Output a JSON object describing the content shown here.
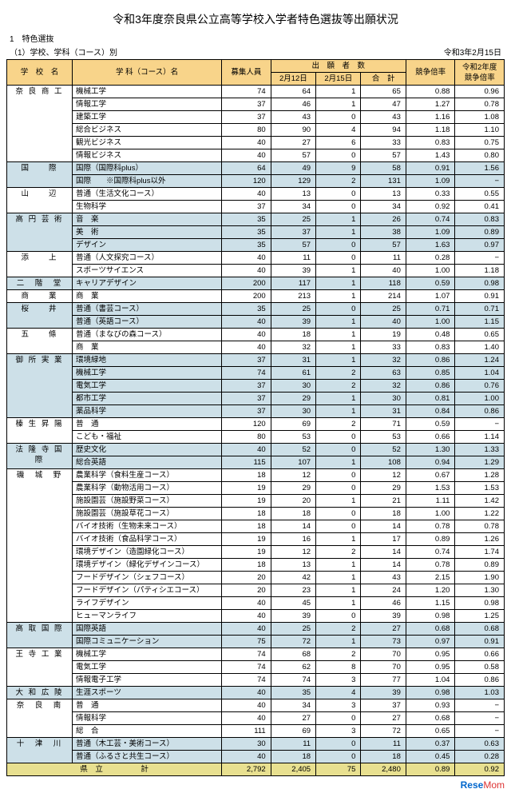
{
  "title": "令和3年度奈良県公立高等学校入学者特色選抜等出願状況",
  "section": "1　特色選抜",
  "subsection": "（1）学校、学科（コース）別",
  "date": "令和3年2月15日",
  "headers": {
    "school": "学　校　名",
    "course": "学 科（コース）名",
    "capacity": "募集人員",
    "appl_group": "出　願　者　数",
    "d1": "2月12日",
    "d2": "2月15日",
    "total": "合　計",
    "ratio": "競争倍率",
    "prev": "令和2年度\n競争倍率"
  },
  "schools": [
    {
      "name": "奈 良 商 工",
      "shade": false,
      "rows": [
        {
          "c": "機械工学",
          "cap": 74,
          "d1": 64,
          "d2": 1,
          "t": 65,
          "r": "0.88",
          "p": "0.96"
        },
        {
          "c": "情報工学",
          "cap": 37,
          "d1": 46,
          "d2": 1,
          "t": 47,
          "r": "1.27",
          "p": "0.78"
        },
        {
          "c": "建築工学",
          "cap": 37,
          "d1": 43,
          "d2": 0,
          "t": 43,
          "r": "1.16",
          "p": "1.08"
        },
        {
          "c": "総合ビジネス",
          "cap": 80,
          "d1": 90,
          "d2": 4,
          "t": 94,
          "r": "1.18",
          "p": "1.10"
        },
        {
          "c": "観光ビジネス",
          "cap": 40,
          "d1": 27,
          "d2": 6,
          "t": 33,
          "r": "0.83",
          "p": "0.75"
        },
        {
          "c": "情報ビジネス",
          "cap": 40,
          "d1": 57,
          "d2": 0,
          "t": 57,
          "r": "1.43",
          "p": "0.80"
        }
      ]
    },
    {
      "name": "国　　際",
      "shade": true,
      "rows": [
        {
          "c": "国際（国際科plus）",
          "cap": 64,
          "d1": 49,
          "d2": 9,
          "t": 58,
          "r": "0.91",
          "p": "1.56"
        },
        {
          "c": "国際　　※国際科plus以外",
          "cap": 120,
          "d1": 129,
          "d2": 2,
          "t": 131,
          "r": "1.09",
          "p": "−"
        }
      ]
    },
    {
      "name": "山　　辺",
      "shade": false,
      "rows": [
        {
          "c": "普通（生活文化コース）",
          "cap": 40,
          "d1": 13,
          "d2": 0,
          "t": 13,
          "r": "0.33",
          "p": "0.55"
        },
        {
          "c": "生物科学",
          "cap": 37,
          "d1": 34,
          "d2": 0,
          "t": 34,
          "r": "0.92",
          "p": "0.41"
        }
      ]
    },
    {
      "name": "高 円 芸 術",
      "shade": true,
      "rows": [
        {
          "c": "音　楽",
          "cap": 35,
          "d1": 25,
          "d2": 1,
          "t": 26,
          "r": "0.74",
          "p": "0.83"
        },
        {
          "c": "美　術",
          "cap": 35,
          "d1": 37,
          "d2": 1,
          "t": 38,
          "r": "1.09",
          "p": "0.89"
        },
        {
          "c": "デザイン",
          "cap": 35,
          "d1": 57,
          "d2": 0,
          "t": 57,
          "r": "1.63",
          "p": "0.97"
        }
      ]
    },
    {
      "name": "添　　上",
      "shade": false,
      "rows": [
        {
          "c": "普通（人文探究コース）",
          "cap": 40,
          "d1": 11,
          "d2": 0,
          "t": 11,
          "r": "0.28",
          "p": "−"
        },
        {
          "c": "スポーツサイエンス",
          "cap": 40,
          "d1": 39,
          "d2": 1,
          "t": 40,
          "r": "1.00",
          "p": "1.18"
        }
      ]
    },
    {
      "name": "二　階　堂",
      "shade": true,
      "rows": [
        {
          "c": "キャリアデザイン",
          "cap": 200,
          "d1": 117,
          "d2": 1,
          "t": 118,
          "r": "0.59",
          "p": "0.98"
        }
      ]
    },
    {
      "name": "商　　業",
      "shade": false,
      "rows": [
        {
          "c": "商　業",
          "cap": 200,
          "d1": 213,
          "d2": 1,
          "t": 214,
          "r": "1.07",
          "p": "0.91"
        }
      ]
    },
    {
      "name": "桜　　井",
      "shade": true,
      "rows": [
        {
          "c": "普通（書芸コース）",
          "cap": 35,
          "d1": 25,
          "d2": 0,
          "t": 25,
          "r": "0.71",
          "p": "0.71"
        },
        {
          "c": "普通（英語コース）",
          "cap": 40,
          "d1": 39,
          "d2": 1,
          "t": 40,
          "r": "1.00",
          "p": "1.15"
        }
      ]
    },
    {
      "name": "五　　條",
      "shade": false,
      "rows": [
        {
          "c": "普通（まなびの森コース）",
          "cap": 40,
          "d1": 18,
          "d2": 1,
          "t": 19,
          "r": "0.48",
          "p": "0.65"
        },
        {
          "c": "商　業",
          "cap": 40,
          "d1": 32,
          "d2": 1,
          "t": 33,
          "r": "0.83",
          "p": "1.40"
        }
      ]
    },
    {
      "name": "御 所 実 業",
      "shade": true,
      "rows": [
        {
          "c": "環境緑地",
          "cap": 37,
          "d1": 31,
          "d2": 1,
          "t": 32,
          "r": "0.86",
          "p": "1.24"
        },
        {
          "c": "機械工学",
          "cap": 74,
          "d1": 61,
          "d2": 2,
          "t": 63,
          "r": "0.85",
          "p": "1.04"
        },
        {
          "c": "電気工学",
          "cap": 37,
          "d1": 30,
          "d2": 2,
          "t": 32,
          "r": "0.86",
          "p": "0.76"
        },
        {
          "c": "都市工学",
          "cap": 37,
          "d1": 29,
          "d2": 1,
          "t": 30,
          "r": "0.81",
          "p": "1.00"
        },
        {
          "c": "薬品科学",
          "cap": 37,
          "d1": 30,
          "d2": 1,
          "t": 31,
          "r": "0.84",
          "p": "0.86"
        }
      ]
    },
    {
      "name": "榛 生 昇 陽",
      "shade": false,
      "rows": [
        {
          "c": "普　通",
          "cap": 120,
          "d1": 69,
          "d2": 2,
          "t": 71,
          "r": "0.59",
          "p": "−"
        },
        {
          "c": "こども・福祉",
          "cap": 80,
          "d1": 53,
          "d2": 0,
          "t": 53,
          "r": "0.66",
          "p": "1.14"
        }
      ]
    },
    {
      "name": "法 隆 寺 国 際",
      "shade": true,
      "rows": [
        {
          "c": "歴史文化",
          "cap": 40,
          "d1": 52,
          "d2": 0,
          "t": 52,
          "r": "1.30",
          "p": "1.33"
        },
        {
          "c": "総合英語",
          "cap": 115,
          "d1": 107,
          "d2": 1,
          "t": 108,
          "r": "0.94",
          "p": "1.29"
        }
      ]
    },
    {
      "name": "磯　城　野",
      "shade": false,
      "rows": [
        {
          "c": "農業科学（食料生産コース）",
          "cap": 18,
          "d1": 12,
          "d2": 0,
          "t": 12,
          "r": "0.67",
          "p": "1.28"
        },
        {
          "c": "農業科学（動物活用コース）",
          "cap": 19,
          "d1": 29,
          "d2": 0,
          "t": 29,
          "r": "1.53",
          "p": "1.53"
        },
        {
          "c": "施設園芸（施設野菜コース）",
          "cap": 19,
          "d1": 20,
          "d2": 1,
          "t": 21,
          "r": "1.11",
          "p": "1.42"
        },
        {
          "c": "施設園芸（施設草花コース）",
          "cap": 18,
          "d1": 18,
          "d2": 0,
          "t": 18,
          "r": "1.00",
          "p": "1.22"
        },
        {
          "c": "バイオ技術（生物未来コース）",
          "cap": 18,
          "d1": 14,
          "d2": 0,
          "t": 14,
          "r": "0.78",
          "p": "0.78"
        },
        {
          "c": "バイオ技術（食品科学コース）",
          "cap": 19,
          "d1": 16,
          "d2": 1,
          "t": 17,
          "r": "0.89",
          "p": "1.26"
        },
        {
          "c": "環境デザイン（造園緑化コース）",
          "cap": 19,
          "d1": 12,
          "d2": 2,
          "t": 14,
          "r": "0.74",
          "p": "1.74"
        },
        {
          "c": "環境デザイン（緑化デザインコース）",
          "cap": 18,
          "d1": 13,
          "d2": 1,
          "t": 14,
          "r": "0.78",
          "p": "0.89"
        },
        {
          "c": "フードデザイン（シェフコース）",
          "cap": 20,
          "d1": 42,
          "d2": 1,
          "t": 43,
          "r": "2.15",
          "p": "1.90"
        },
        {
          "c": "フードデザイン（パティシエコース）",
          "cap": 20,
          "d1": 23,
          "d2": 1,
          "t": 24,
          "r": "1.20",
          "p": "1.30"
        },
        {
          "c": "ライフデザイン",
          "cap": 40,
          "d1": 45,
          "d2": 1,
          "t": 46,
          "r": "1.15",
          "p": "0.98"
        },
        {
          "c": "ヒューマンライフ",
          "cap": 40,
          "d1": 39,
          "d2": 0,
          "t": 39,
          "r": "0.98",
          "p": "1.25"
        }
      ]
    },
    {
      "name": "高 取 国 際",
      "shade": true,
      "rows": [
        {
          "c": "国際英語",
          "cap": 40,
          "d1": 25,
          "d2": 2,
          "t": 27,
          "r": "0.68",
          "p": "0.68"
        },
        {
          "c": "国際コミュニケーション",
          "cap": 75,
          "d1": 72,
          "d2": 1,
          "t": 73,
          "r": "0.97",
          "p": "0.91"
        }
      ]
    },
    {
      "name": "王 寺 工 業",
      "shade": false,
      "rows": [
        {
          "c": "機械工学",
          "cap": 74,
          "d1": 68,
          "d2": 2,
          "t": 70,
          "r": "0.95",
          "p": "0.66"
        },
        {
          "c": "電気工学",
          "cap": 74,
          "d1": 62,
          "d2": 8,
          "t": 70,
          "r": "0.95",
          "p": "0.58"
        },
        {
          "c": "情報電子工学",
          "cap": 74,
          "d1": 74,
          "d2": 3,
          "t": 77,
          "r": "1.04",
          "p": "0.86"
        }
      ]
    },
    {
      "name": "大 和 広 陵",
      "shade": true,
      "rows": [
        {
          "c": "生涯スポーツ",
          "cap": 40,
          "d1": 35,
          "d2": 4,
          "t": 39,
          "r": "0.98",
          "p": "1.03"
        }
      ]
    },
    {
      "name": "奈　良　南",
      "shade": false,
      "rows": [
        {
          "c": "普　通",
          "cap": 40,
          "d1": 34,
          "d2": 3,
          "t": 37,
          "r": "0.93",
          "p": "−"
        },
        {
          "c": "情報科学",
          "cap": 40,
          "d1": 27,
          "d2": 0,
          "t": 27,
          "r": "0.68",
          "p": "−"
        },
        {
          "c": "総　合",
          "cap": 111,
          "d1": 69,
          "d2": 3,
          "t": 72,
          "r": "0.65",
          "p": "−"
        }
      ]
    },
    {
      "name": "十　津　川",
      "shade": true,
      "rows": [
        {
          "c": "普通（木工芸・美術コース）",
          "cap": 30,
          "d1": 11,
          "d2": 0,
          "t": 11,
          "r": "0.37",
          "p": "0.63"
        },
        {
          "c": "普通（ふるさと共生コース）",
          "cap": 40,
          "d1": 18,
          "d2": 0,
          "t": 18,
          "r": "0.45",
          "p": "0.28"
        }
      ]
    }
  ],
  "total": {
    "label": "県　立　　　　　計",
    "cap": "2,792",
    "d1": "2,405",
    "d2": 75,
    "t": "2,480",
    "r": "0.89",
    "p": "0.92"
  },
  "logo": {
    "a": "Rese",
    "b": "Mom"
  }
}
